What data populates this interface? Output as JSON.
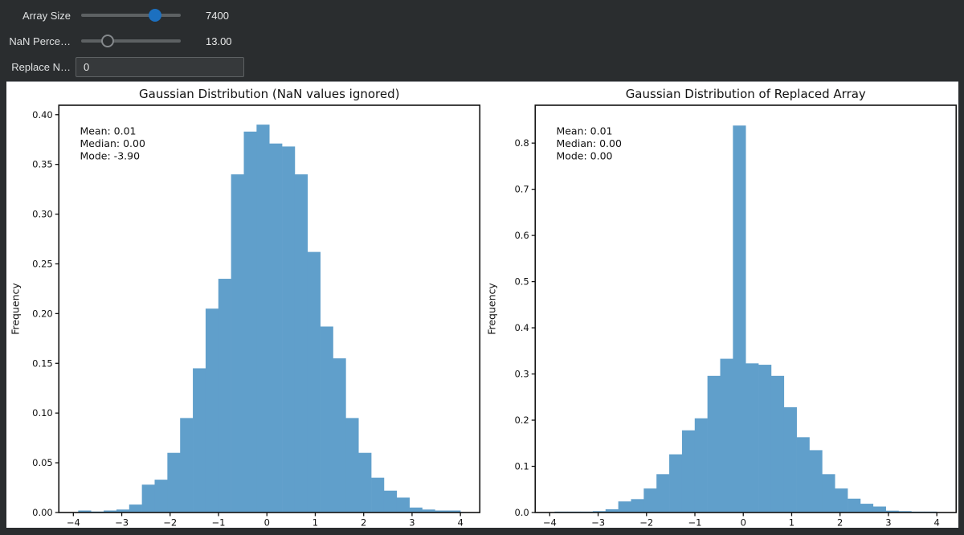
{
  "controls": {
    "array_size": {
      "label": "Array Size",
      "value": "7400",
      "position_pct": 74
    },
    "nan_percentage": {
      "label": "NaN Perce…",
      "value": "13.00",
      "position_pct": 27
    },
    "replace_nan": {
      "label": "Replace N…",
      "value": "0"
    }
  },
  "colors": {
    "page_bg": "#2a2d2f",
    "canvas_bg": "#ffffff",
    "accent_blue": "#1c70c0",
    "bar_blue": "#609fcb",
    "slider_track": "#5d6163"
  },
  "chart_data": [
    {
      "type": "bar",
      "subtype": "histogram",
      "title": "Gaussian Distribution (NaN values ignored)",
      "xlabel": "",
      "ylabel": "Frequency",
      "annotation": [
        "Mean: 0.01",
        "Median: 0.00",
        "Mode: -3.90"
      ],
      "bar_color": "#609fcb",
      "bin_start": -3.9,
      "bin_width": 0.2633,
      "heights": [
        0.002,
        0.001,
        0.002,
        0.003,
        0.008,
        0.028,
        0.033,
        0.06,
        0.095,
        0.145,
        0.205,
        0.235,
        0.34,
        0.383,
        0.39,
        0.371,
        0.368,
        0.34,
        0.262,
        0.187,
        0.155,
        0.095,
        0.06,
        0.035,
        0.022,
        0.015,
        0.005,
        0.003,
        0.002,
        0.002
      ],
      "xlim": [
        -4.3,
        4.4
      ],
      "ylim": [
        0,
        0.4095
      ],
      "xticks": [
        -4,
        -3,
        -2,
        -1,
        0,
        1,
        2,
        3,
        4
      ],
      "yticks": [
        0.0,
        0.05,
        0.1,
        0.15,
        0.2,
        0.25,
        0.3,
        0.35,
        0.4
      ],
      "ytick_decimals": 2,
      "grid": false,
      "legend": null
    },
    {
      "type": "bar",
      "subtype": "histogram",
      "title": "Gaussian Distribution of Replaced Array",
      "xlabel": "",
      "ylabel": "Frequency",
      "annotation": [
        "Mean: 0.01",
        "Median: 0.00",
        "Mode: 0.00"
      ],
      "bar_color": "#609fcb",
      "bin_start": -3.9,
      "bin_width": 0.2633,
      "heights": [
        0.002,
        0.002,
        0.002,
        0.003,
        0.007,
        0.024,
        0.029,
        0.052,
        0.083,
        0.126,
        0.178,
        0.204,
        0.296,
        0.333,
        0.838,
        0.323,
        0.32,
        0.296,
        0.228,
        0.163,
        0.135,
        0.083,
        0.052,
        0.03,
        0.019,
        0.013,
        0.004,
        0.003,
        0.002,
        0.002
      ],
      "xlim": [
        -4.3,
        4.4
      ],
      "ylim": [
        0,
        0.882
      ],
      "xticks": [
        -4,
        -3,
        -2,
        -1,
        0,
        1,
        2,
        3,
        4
      ],
      "yticks": [
        0.0,
        0.1,
        0.2,
        0.3,
        0.4,
        0.5,
        0.6,
        0.7,
        0.8
      ],
      "ytick_decimals": 1,
      "grid": false,
      "legend": null
    }
  ]
}
